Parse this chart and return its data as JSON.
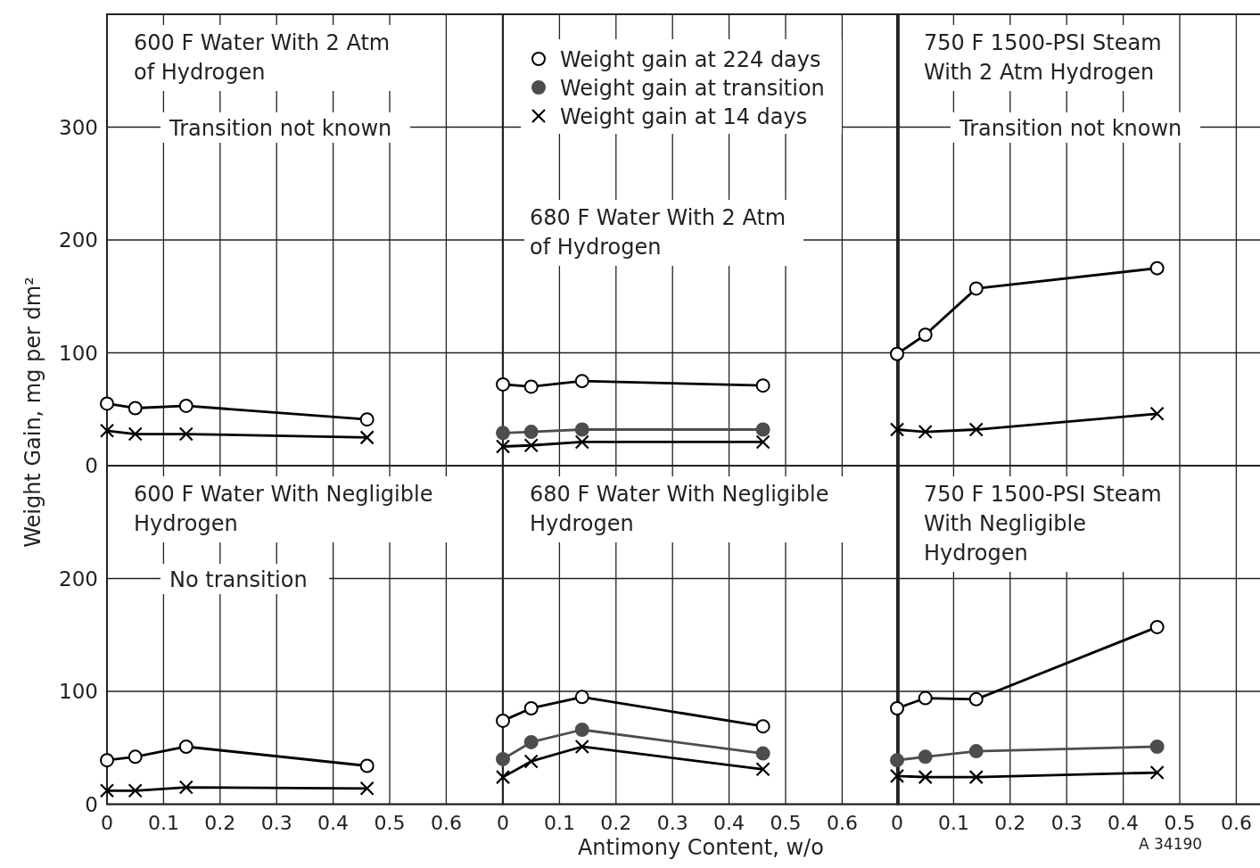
{
  "chart_data": [
    {
      "type": "line",
      "title": "600 F Water With 2 Atm\nof Hydrogen",
      "ylabel": "Weight Gain, mg per dm²",
      "annotations": [
        "Transition not known"
      ],
      "xlim": [
        0,
        0.7
      ],
      "ylim": [
        0,
        400
      ],
      "yticks": [
        0,
        100,
        200,
        300
      ],
      "tick_labels": "y",
      "grid": true,
      "legend": false,
      "series": [
        {
          "color": "#000000",
          "marker": "circle",
          "x": [
            0,
            0.05,
            0.14,
            0.46
          ],
          "values": [
            55,
            51,
            53,
            41
          ]
        },
        {
          "color": "#000000",
          "marker": "cross",
          "x": [
            0,
            0.05,
            0.14,
            0.46
          ],
          "values": [
            31,
            28,
            28,
            25
          ]
        }
      ]
    },
    {
      "type": "line",
      "title": "680 F Water With 2 Atm\nof Hydrogen",
      "xlim": [
        0,
        0.7
      ],
      "ylim": [
        0,
        400
      ],
      "tick_labels": false,
      "grid": true,
      "legend": "top",
      "series": [
        {
          "name": "Weight gain at 224 days",
          "color": "#000000",
          "marker": "circle",
          "x": [
            0,
            0.05,
            0.14,
            0.46
          ],
          "values": [
            72,
            70,
            75,
            71
          ]
        },
        {
          "name": "Weight gain at transition",
          "color": "#4d4d4d",
          "marker": "circle",
          "x": [
            0,
            0.05,
            0.14,
            0.46
          ],
          "values": [
            29,
            30,
            32,
            32
          ]
        },
        {
          "name": "Weight gain at 14 days",
          "color": "#000000",
          "marker": "cross",
          "x": [
            0,
            0.05,
            0.14,
            0.46
          ],
          "values": [
            17,
            18,
            21,
            21
          ]
        }
      ]
    },
    {
      "type": "line",
      "title": "750 F 1500-PSI Steam\nWith 2 Atm Hydrogen",
      "annotations": [
        "Transition not known"
      ],
      "xlim": [
        0,
        0.65
      ],
      "ylim": [
        0,
        400
      ],
      "tick_labels": false,
      "grid": true,
      "legend": false,
      "series": [
        {
          "color": "#000000",
          "marker": "circle",
          "x": [
            0,
            0.05,
            0.14,
            0.46
          ],
          "values": [
            99,
            116,
            157,
            175
          ]
        },
        {
          "color": "#000000",
          "marker": "cross",
          "x": [
            0,
            0.05,
            0.14,
            0.46
          ],
          "values": [
            32,
            30,
            32,
            46
          ]
        }
      ]
    },
    {
      "type": "line",
      "title": "600 F Water With Negligible\nHydrogen",
      "annotations": [
        "No transition"
      ],
      "xlim": [
        0,
        0.7
      ],
      "xticks": [
        0,
        0.1,
        0.2,
        0.3,
        0.4,
        0.5,
        0.6
      ],
      "ylim": [
        0,
        300
      ],
      "yticks": [
        0,
        100,
        200
      ],
      "grid": true,
      "legend": false,
      "series": [
        {
          "color": "#000000",
          "marker": "circle",
          "x": [
            0,
            0.05,
            0.14,
            0.46
          ],
          "values": [
            39,
            42,
            51,
            34
          ]
        },
        {
          "color": "#000000",
          "marker": "cross",
          "x": [
            0,
            0.05,
            0.14,
            0.46
          ],
          "values": [
            12,
            12,
            15,
            14
          ]
        }
      ]
    },
    {
      "type": "line",
      "title": "680 F Water With Negligible\nHydrogen",
      "xlabel": "Antimony Content, w/o",
      "xlim": [
        0,
        0.7
      ],
      "xticks": [
        0,
        0.1,
        0.2,
        0.3,
        0.4,
        0.5,
        0.6
      ],
      "ylim": [
        0,
        300
      ],
      "tick_labels": "x",
      "grid": true,
      "legend": false,
      "series": [
        {
          "color": "#000000",
          "marker": "circle",
          "x": [
            0,
            0.05,
            0.14,
            0.46
          ],
          "values": [
            74,
            85,
            95,
            69
          ]
        },
        {
          "color": "#4d4d4d",
          "marker": "circle",
          "x": [
            0,
            0.05,
            0.14,
            0.46
          ],
          "values": [
            40,
            55,
            66,
            45
          ]
        },
        {
          "color": "#000000",
          "marker": "cross",
          "x": [
            0,
            0.05,
            0.14,
            0.46
          ],
          "values": [
            24,
            38,
            51,
            31
          ]
        }
      ]
    },
    {
      "type": "line",
      "title": "750 F 1500-PSI Steam\nWith Negligible\nHydrogen",
      "annotations": [
        null,
        "A 34190"
      ],
      "xlim": [
        0,
        0.65
      ],
      "xticks": [
        0,
        0.1,
        0.2,
        0.3,
        0.4,
        0.5,
        0.6
      ],
      "ylim": [
        0,
        300
      ],
      "tick_labels": "x",
      "grid": true,
      "legend": false,
      "series": [
        {
          "color": "#000000",
          "marker": "circle",
          "x": [
            0,
            0.05,
            0.14,
            0.46
          ],
          "values": [
            85,
            94,
            93,
            157
          ]
        },
        {
          "color": "#4d4d4d",
          "marker": "circle",
          "x": [
            0,
            0.05,
            0.14,
            0.46
          ],
          "values": [
            39,
            42,
            47,
            51
          ]
        },
        {
          "color": "#000000",
          "marker": "cross",
          "x": [
            0,
            0.05,
            0.14,
            0.46
          ],
          "values": [
            25,
            24,
            24,
            28
          ]
        }
      ]
    }
  ]
}
